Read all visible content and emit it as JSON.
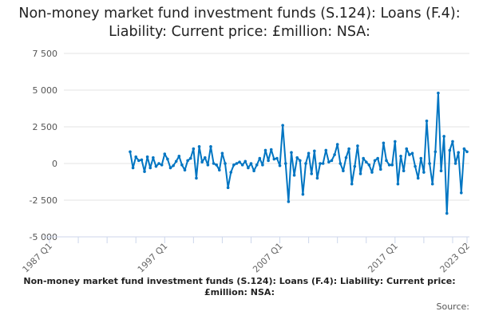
{
  "chart_data": {
    "type": "line",
    "title": "Non-money market fund investment funds (S.124): Loans (F.4): Liability: Current price: £million: NSA:",
    "subtitle": "Non-money market fund investment funds (S.124): Loans (F.4): Liability: Current price: £million: NSA:",
    "source_label": "Source:",
    "xlabel": "",
    "ylabel": "",
    "x_range": [
      "1987 Q1",
      "2023 Q2"
    ],
    "x_ticks": [
      "1987 Q1",
      "1997 Q1",
      "2007 Q1",
      "2017 Q1",
      "2023 Q2"
    ],
    "ylim": [
      -5000,
      7500
    ],
    "y_ticks": [
      {
        "value": 7500,
        "label": "7 500"
      },
      {
        "value": 5000,
        "label": "5 000"
      },
      {
        "value": 2500,
        "label": "2 500"
      },
      {
        "value": 0,
        "label": "0"
      },
      {
        "value": -2500,
        "label": "-2 500"
      },
      {
        "value": -5000,
        "label": "-5 000"
      }
    ],
    "grid": true,
    "line_color": "#0075c2",
    "x": [
      "1994 Q1",
      "1994 Q2",
      "1994 Q3",
      "1994 Q4",
      "1995 Q1",
      "1995 Q2",
      "1995 Q3",
      "1995 Q4",
      "1996 Q1",
      "1996 Q2",
      "1996 Q3",
      "1996 Q4",
      "1997 Q1",
      "1997 Q2",
      "1997 Q3",
      "1997 Q4",
      "1998 Q1",
      "1998 Q2",
      "1998 Q3",
      "1998 Q4",
      "1999 Q1",
      "1999 Q2",
      "1999 Q3",
      "1999 Q4",
      "2000 Q1",
      "2000 Q2",
      "2000 Q3",
      "2000 Q4",
      "2001 Q1",
      "2001 Q2",
      "2001 Q3",
      "2001 Q4",
      "2002 Q1",
      "2002 Q2",
      "2002 Q3",
      "2002 Q4",
      "2003 Q1",
      "2003 Q2",
      "2003 Q3",
      "2003 Q4",
      "2004 Q1",
      "2004 Q2",
      "2004 Q3",
      "2004 Q4",
      "2005 Q1",
      "2005 Q2",
      "2005 Q3",
      "2005 Q4",
      "2006 Q1",
      "2006 Q2",
      "2006 Q3",
      "2006 Q4",
      "2007 Q1",
      "2007 Q2",
      "2007 Q3",
      "2007 Q4",
      "2008 Q1",
      "2008 Q2",
      "2008 Q3",
      "2008 Q4",
      "2009 Q1",
      "2009 Q2",
      "2009 Q3",
      "2009 Q4",
      "2010 Q1",
      "2010 Q2",
      "2010 Q3",
      "2010 Q4",
      "2011 Q1",
      "2011 Q2",
      "2011 Q3",
      "2011 Q4",
      "2012 Q1",
      "2012 Q2",
      "2012 Q3",
      "2012 Q4",
      "2013 Q1",
      "2013 Q2",
      "2013 Q3",
      "2013 Q4",
      "2014 Q1",
      "2014 Q2",
      "2014 Q3",
      "2014 Q4",
      "2015 Q1",
      "2015 Q2",
      "2015 Q3",
      "2015 Q4",
      "2016 Q1",
      "2016 Q2",
      "2016 Q3",
      "2016 Q4",
      "2017 Q1",
      "2017 Q2",
      "2017 Q3",
      "2017 Q4",
      "2018 Q1",
      "2018 Q2",
      "2018 Q3",
      "2018 Q4",
      "2019 Q1",
      "2019 Q2",
      "2019 Q3",
      "2019 Q4",
      "2020 Q1",
      "2020 Q2",
      "2020 Q3",
      "2020 Q4",
      "2021 Q1",
      "2021 Q2",
      "2021 Q3",
      "2021 Q4",
      "2022 Q1",
      "2022 Q2",
      "2022 Q3",
      "2022 Q4",
      "2023 Q1",
      "2023 Q2"
    ],
    "values": [
      800,
      -300,
      450,
      200,
      250,
      -550,
      450,
      -300,
      400,
      -200,
      0,
      -100,
      650,
      300,
      -300,
      -150,
      150,
      500,
      -100,
      -450,
      200,
      350,
      1000,
      -1000,
      1150,
      100,
      400,
      -100,
      1150,
      0,
      -100,
      -450,
      700,
      0,
      -1650,
      -600,
      -100,
      0,
      100,
      -100,
      150,
      -300,
      0,
      -500,
      -100,
      350,
      -100,
      900,
      200,
      950,
      300,
      350,
      -150,
      2600,
      0,
      -2600,
      750,
      -800,
      400,
      200,
      -2100,
      0,
      700,
      -700,
      850,
      -1000,
      0,
      0,
      900,
      100,
      200,
      600,
      1300,
      0,
      -500,
      400,
      1000,
      -1400,
      -200,
      1200,
      -700,
      350,
      100,
      -100,
      -600,
      200,
      350,
      -400,
      1400,
      200,
      -100,
      -100,
      1500,
      -1400,
      500,
      -500,
      1000,
      600,
      700,
      -200,
      -1000,
      350,
      -600,
      2900,
      0,
      -1400,
      800,
      4800,
      -500,
      1850,
      -3400,
      900,
      1500,
      0,
      750,
      -2000,
      1000,
      800
    ]
  }
}
